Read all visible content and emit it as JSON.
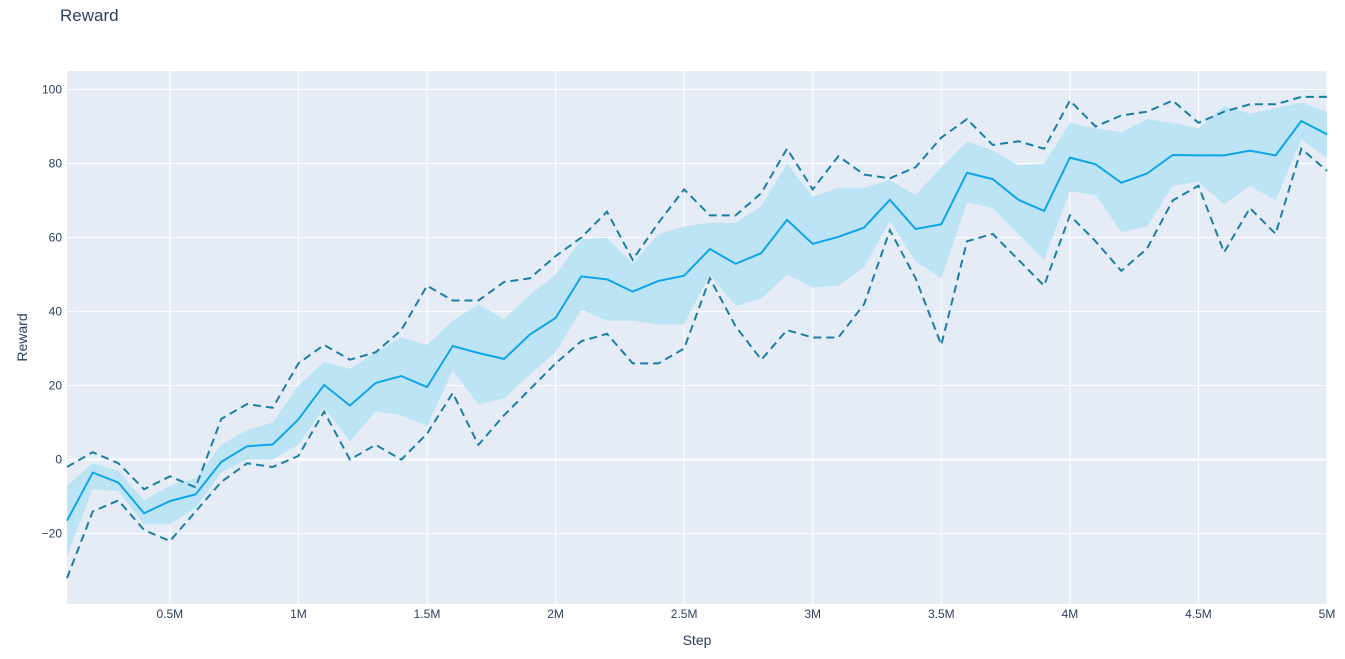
{
  "chart_data": {
    "type": "line",
    "title": "Reward",
    "xlabel": "Step",
    "ylabel": "Reward",
    "xlim": [
      100000,
      5000000
    ],
    "ylim": [
      -39,
      105
    ],
    "x_ticks": [
      {
        "value": 500000,
        "label": "0.5M"
      },
      {
        "value": 1000000,
        "label": "1M"
      },
      {
        "value": 1500000,
        "label": "1.5M"
      },
      {
        "value": 2000000,
        "label": "2M"
      },
      {
        "value": 2500000,
        "label": "2.5M"
      },
      {
        "value": 3000000,
        "label": "3M"
      },
      {
        "value": 3500000,
        "label": "3.5M"
      },
      {
        "value": 4000000,
        "label": "4M"
      },
      {
        "value": 4500000,
        "label": "4.5M"
      },
      {
        "value": 5000000,
        "label": "5M"
      }
    ],
    "y_ticks": [
      {
        "value": -20,
        "label": "−20"
      },
      {
        "value": 0,
        "label": "0"
      },
      {
        "value": 20,
        "label": "20"
      },
      {
        "value": 40,
        "label": "40"
      },
      {
        "value": 60,
        "label": "60"
      },
      {
        "value": 80,
        "label": "80"
      },
      {
        "value": 100,
        "label": "100"
      }
    ],
    "grid": true,
    "x": [
      100000,
      200000,
      300000,
      400000,
      500000,
      600000,
      700000,
      800000,
      900000,
      1000000,
      1100000,
      1200000,
      1300000,
      1400000,
      1500000,
      1600000,
      1700000,
      1800000,
      1900000,
      2000000,
      2100000,
      2200000,
      2300000,
      2400000,
      2500000,
      2600000,
      2700000,
      2800000,
      2900000,
      3000000,
      3100000,
      3200000,
      3300000,
      3400000,
      3500000,
      3600000,
      3700000,
      3800000,
      3900000,
      4000000,
      4100000,
      4200000,
      4300000,
      4400000,
      4500000,
      4600000,
      4700000,
      4800000,
      4900000,
      5000000
    ],
    "series": [
      {
        "role": "mean",
        "style": "solid",
        "values": [
          -16.5,
          -3.5,
          -6.2,
          -14.5,
          -11.2,
          -9.4,
          -0.6,
          3.6,
          4.1,
          10.9,
          20.2,
          14.6,
          20.7,
          22.6,
          19.6,
          30.7,
          28.8,
          27.2,
          33.8,
          38.3,
          49.5,
          48.7,
          45.4,
          48.3,
          49.7,
          56.9,
          52.9,
          55.8,
          64.8,
          58.3,
          60.2,
          62.7,
          70.2,
          62.3,
          63.6,
          77.5,
          75.8,
          70.2,
          67.2,
          81.6,
          79.8,
          74.8,
          77.3,
          82.3,
          82.2,
          82.2,
          83.5,
          82.2,
          91.5,
          87.9
        ]
      },
      {
        "role": "band_upper",
        "style": "fill",
        "values": [
          -7,
          -1,
          -3,
          -11,
          -7,
          -5,
          4,
          8,
          10,
          20,
          26.5,
          24.5,
          29,
          33,
          31,
          37.5,
          42,
          38,
          44.5,
          50,
          59.5,
          60,
          53,
          61,
          63,
          64,
          64,
          68.5,
          80,
          71,
          73.5,
          73.5,
          75.5,
          71.5,
          79,
          86,
          83.5,
          79.5,
          80,
          91,
          89.5,
          88.5,
          92,
          91,
          89.5,
          95.5,
          93.5,
          95,
          96.5,
          94
        ]
      },
      {
        "role": "band_lower",
        "style": "fill",
        "values": [
          -26,
          -8,
          -8.5,
          -17.5,
          -17.5,
          -13,
          -3.5,
          0,
          0,
          4,
          14,
          5,
          13,
          12,
          9,
          24,
          15,
          16.5,
          23,
          29,
          40.5,
          37.5,
          37.5,
          36.5,
          36.5,
          50,
          41.5,
          43.5,
          50,
          46.5,
          47,
          52,
          64.5,
          53.5,
          49,
          69.5,
          68,
          61,
          54,
          72.5,
          71.5,
          61.5,
          63,
          74,
          75,
          69,
          74,
          70,
          86.5,
          81.5
        ]
      },
      {
        "role": "max",
        "style": "dashed",
        "values": [
          -2,
          2,
          -1,
          -8,
          -4.5,
          -7.5,
          11,
          15,
          14,
          26,
          31,
          27,
          29,
          35,
          47,
          43,
          43,
          48,
          49,
          55,
          60,
          67,
          54,
          64,
          73,
          66,
          66,
          72,
          84,
          73,
          82,
          77,
          76,
          79,
          87,
          92,
          85,
          86,
          84,
          97,
          90,
          93,
          94,
          97,
          91,
          94,
          96,
          96,
          98,
          98
        ]
      },
      {
        "role": "min",
        "style": "dashed",
        "values": [
          -32,
          -14,
          -11,
          -19,
          -22,
          -14,
          -6,
          -1,
          -2,
          1,
          13,
          0,
          4,
          0,
          7,
          18,
          4,
          12,
          19,
          26,
          32,
          34,
          26,
          26,
          30,
          49,
          36,
          27,
          35,
          33,
          33,
          42,
          62,
          49,
          31,
          59,
          61,
          54,
          47,
          66,
          59,
          51,
          57,
          70,
          74,
          56,
          68,
          61,
          84,
          78
        ]
      }
    ],
    "colors": {
      "mean": "#0ea5e9",
      "band": "#bde4f4",
      "minmax": "#1a7fa6",
      "plot_bg": "#e5ecf6",
      "grid": "#ffffff",
      "text": "#2a3f5f"
    }
  }
}
